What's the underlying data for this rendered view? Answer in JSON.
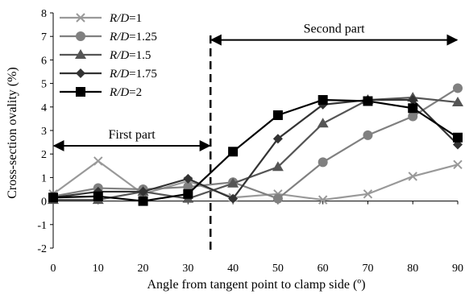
{
  "chart_data": {
    "type": "line",
    "xlabel": "Angle from tangent point to clamp side (º)",
    "ylabel": "Cross-section ovality (%)",
    "xlim": [
      0,
      90
    ],
    "ylim": [
      -2,
      8
    ],
    "x_ticks": [
      "0",
      "10",
      "20",
      "30",
      "40",
      "50",
      "60",
      "70",
      "80",
      "90"
    ],
    "y_ticks": [
      "-2",
      "-1",
      "0",
      "1",
      "2",
      "3",
      "4",
      "5",
      "6",
      "7",
      "8"
    ],
    "grid": false,
    "legend_position": "top-left",
    "divider_x": 35,
    "annotations": [
      {
        "text": "First part",
        "arrow_from_x": 0,
        "arrow_to_x": 35,
        "y": 2.35
      },
      {
        "text": "Second part",
        "arrow_from_x": 35,
        "arrow_to_x": 90,
        "y": 6.85
      }
    ],
    "series": [
      {
        "name": "R/D=1",
        "legend_name": "R/D",
        "legend_value": "=1",
        "marker": "x",
        "color": "#999999",
        "x": [
          0,
          10,
          20,
          30,
          40,
          50,
          60,
          70,
          80,
          90
        ],
        "y": [
          0.3,
          1.7,
          0.3,
          0.85,
          0.15,
          0.3,
          0.05,
          0.3,
          1.05,
          1.55
        ]
      },
      {
        "name": "R/D=1.25",
        "legend_name": "R/D",
        "legend_value": "=1.25",
        "marker": "circle",
        "color": "#808080",
        "x": [
          0,
          10,
          20,
          30,
          40,
          50,
          60,
          70,
          80,
          90
        ],
        "y": [
          0.2,
          0.55,
          0.5,
          0.6,
          0.8,
          0.1,
          1.65,
          2.8,
          3.6,
          4.8
        ]
      },
      {
        "name": "R/D=1.5",
        "legend_name": "R/D",
        "legend_value": "=1.5",
        "marker": "triangle",
        "color": "#555555",
        "x": [
          0,
          10,
          20,
          30,
          40,
          50,
          60,
          70,
          80,
          90
        ],
        "y": [
          0.05,
          0.05,
          0.4,
          0.1,
          0.75,
          1.45,
          3.3,
          4.3,
          4.4,
          4.2
        ]
      },
      {
        "name": "R/D=1.75",
        "legend_name": "R/D",
        "legend_value": "=1.75",
        "marker": "diamond",
        "color": "#333333",
        "x": [
          0,
          10,
          20,
          30,
          40,
          50,
          60,
          70,
          80,
          90
        ],
        "y": [
          0.15,
          0.4,
          0.4,
          0.95,
          0.1,
          2.65,
          4.1,
          4.3,
          4.3,
          2.4
        ]
      },
      {
        "name": "R/D=2",
        "legend_name": "R/D",
        "legend_value": "=2",
        "marker": "square",
        "color": "#000000",
        "x": [
          0,
          10,
          20,
          30,
          40,
          50,
          60,
          70,
          80,
          90
        ],
        "y": [
          0.15,
          0.2,
          0.0,
          0.3,
          2.1,
          3.65,
          4.3,
          4.25,
          3.95,
          2.7
        ]
      }
    ]
  }
}
